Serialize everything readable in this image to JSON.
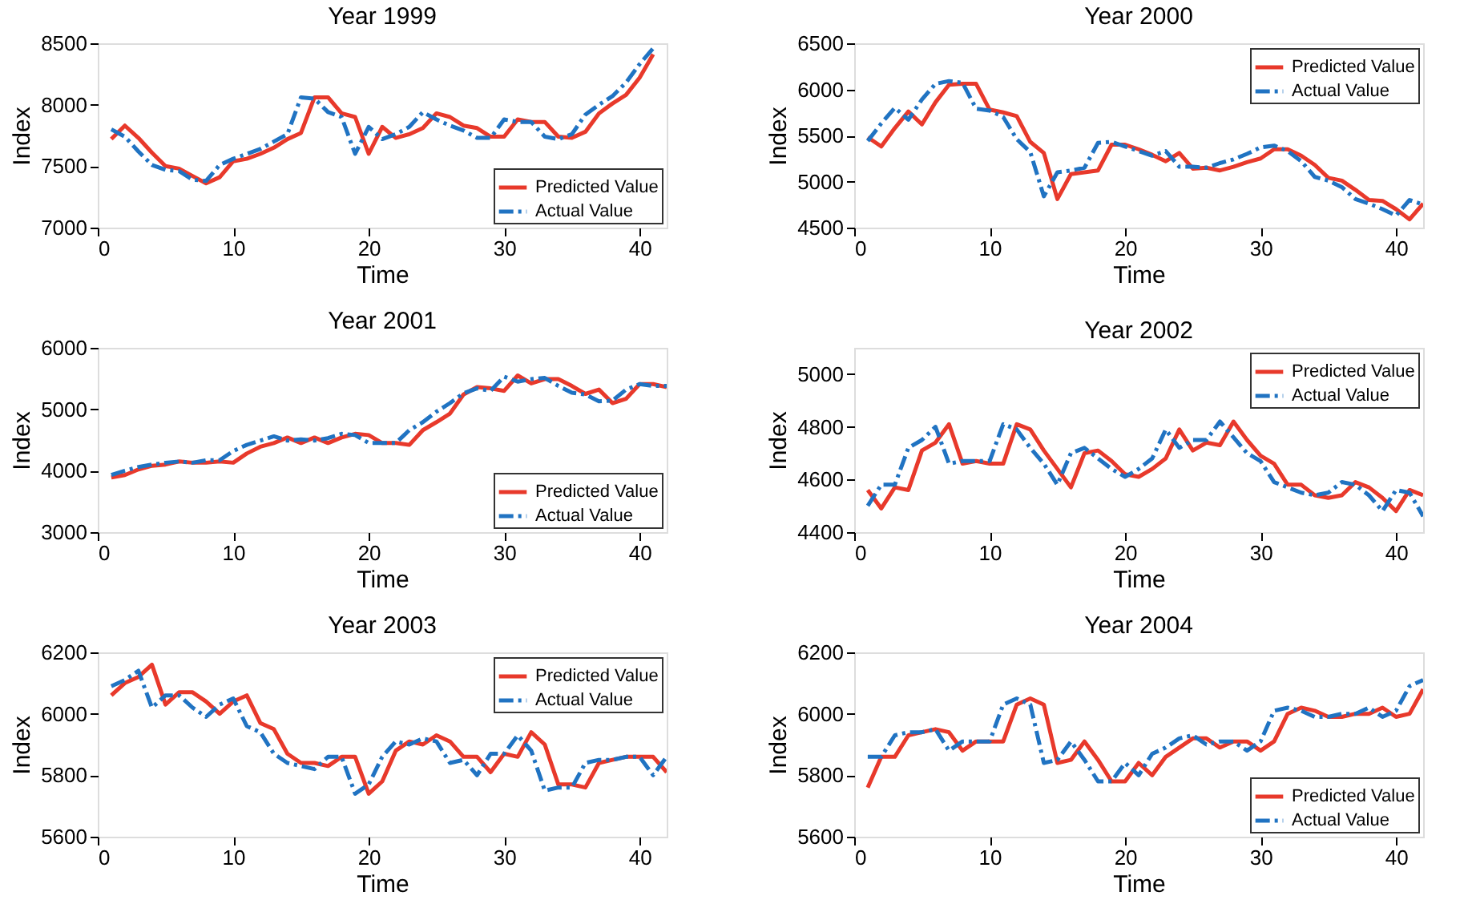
{
  "chart_data": [
    {
      "type": "line",
      "title": "Year 1999",
      "xlabel": "Time",
      "ylabel": "Index",
      "xlim": [
        0,
        42
      ],
      "xticks": [
        0,
        10,
        20,
        30,
        40
      ],
      "ylim": [
        7000,
        8500
      ],
      "yticks": [
        7000,
        7500,
        8000,
        8500
      ],
      "legend": "bottom right",
      "x": [
        1,
        2,
        3,
        4,
        5,
        6,
        7,
        8,
        9,
        10,
        11,
        12,
        13,
        14,
        15,
        16,
        17,
        18,
        19,
        20,
        21,
        22,
        23,
        24,
        25,
        26,
        27,
        28,
        29,
        30,
        31,
        32,
        33,
        34,
        35,
        36,
        37,
        38,
        39,
        40,
        41
      ],
      "series": [
        {
          "name": "Predicted Value",
          "color": "#e8392b",
          "line_style": "solid",
          "values": [
            7720,
            7830,
            7730,
            7610,
            7500,
            7480,
            7420,
            7360,
            7410,
            7540,
            7560,
            7600,
            7650,
            7720,
            7770,
            8060,
            8060,
            7930,
            7900,
            7600,
            7820,
            7730,
            7760,
            7810,
            7930,
            7900,
            7830,
            7810,
            7740,
            7740,
            7880,
            7860,
            7860,
            7740,
            7730,
            7780,
            7930,
            8010,
            8080,
            8220,
            8410
          ]
        },
        {
          "name": "Actual Value",
          "color": "#2073c2",
          "line_style": "dashed",
          "values": [
            7800,
            7740,
            7620,
            7510,
            7470,
            7460,
            7390,
            7380,
            7510,
            7560,
            7600,
            7640,
            7700,
            7760,
            8060,
            8050,
            7940,
            7900,
            7600,
            7820,
            7720,
            7760,
            7820,
            7940,
            7880,
            7830,
            7790,
            7730,
            7730,
            7880,
            7860,
            7860,
            7740,
            7720,
            7760,
            7920,
            8000,
            8070,
            8180,
            8330,
            8460
          ]
        }
      ]
    },
    {
      "type": "line",
      "title": "Year 2000",
      "xlabel": "Time",
      "ylabel": "Index",
      "xlim": [
        0,
        42
      ],
      "xticks": [
        0,
        10,
        20,
        30,
        40
      ],
      "ylim": [
        4500,
        6500
      ],
      "yticks": [
        4500,
        5000,
        5500,
        6000,
        6500
      ],
      "legend": "top right",
      "x": [
        1,
        2,
        3,
        4,
        5,
        6,
        7,
        8,
        9,
        10,
        11,
        12,
        13,
        14,
        15,
        16,
        17,
        18,
        19,
        20,
        21,
        22,
        23,
        24,
        25,
        26,
        27,
        28,
        29,
        30,
        31,
        32,
        33,
        34,
        35,
        36,
        37,
        38,
        39,
        40,
        41,
        42
      ],
      "series": [
        {
          "name": "Predicted Value",
          "color": "#e8392b",
          "line_style": "solid",
          "values": [
            5480,
            5380,
            5580,
            5760,
            5620,
            5860,
            6050,
            6060,
            6060,
            5780,
            5750,
            5710,
            5430,
            5310,
            4810,
            5080,
            5100,
            5120,
            5400,
            5400,
            5350,
            5290,
            5220,
            5310,
            5140,
            5150,
            5120,
            5160,
            5210,
            5250,
            5350,
            5350,
            5280,
            5180,
            5040,
            5010,
            4910,
            4800,
            4790,
            4700,
            4590,
            4760
          ]
        },
        {
          "name": "Actual Value",
          "color": "#2073c2",
          "line_style": "dashed",
          "values": [
            5440,
            5630,
            5800,
            5670,
            5890,
            6060,
            6090,
            6070,
            5790,
            5770,
            5700,
            5460,
            5320,
            4840,
            5100,
            5120,
            5150,
            5420,
            5430,
            5380,
            5330,
            5280,
            5330,
            5160,
            5160,
            5150,
            5200,
            5240,
            5300,
            5370,
            5390,
            5330,
            5220,
            5050,
            5010,
            4940,
            4810,
            4760,
            4700,
            4630,
            4800,
            4750
          ]
        }
      ]
    },
    {
      "type": "line",
      "title": "Year 2001",
      "xlabel": "Time",
      "ylabel": "Index",
      "xlim": [
        0,
        42
      ],
      "xticks": [
        0,
        10,
        20,
        30,
        40
      ],
      "ylim": [
        3000,
        6000
      ],
      "yticks": [
        3000,
        4000,
        5000,
        6000
      ],
      "legend": "bottom right",
      "x": [
        1,
        2,
        3,
        4,
        5,
        6,
        7,
        8,
        9,
        10,
        11,
        12,
        13,
        14,
        15,
        16,
        17,
        18,
        19,
        20,
        21,
        22,
        23,
        24,
        25,
        26,
        27,
        28,
        29,
        30,
        31,
        32,
        33,
        34,
        35,
        36,
        37,
        38,
        39,
        40,
        41,
        42
      ],
      "series": [
        {
          "name": "Predicted Value",
          "color": "#e8392b",
          "line_style": "solid",
          "values": [
            3890,
            3930,
            4020,
            4080,
            4100,
            4150,
            4130,
            4130,
            4150,
            4130,
            4280,
            4390,
            4450,
            4540,
            4450,
            4540,
            4450,
            4540,
            4600,
            4580,
            4450,
            4450,
            4420,
            4660,
            4790,
            4930,
            5240,
            5360,
            5340,
            5300,
            5550,
            5420,
            5490,
            5490,
            5380,
            5250,
            5320,
            5100,
            5170,
            5410,
            5410,
            5360
          ]
        },
        {
          "name": "Actual Value",
          "color": "#2073c2",
          "line_style": "dashed",
          "values": [
            3930,
            4000,
            4060,
            4100,
            4130,
            4150,
            4130,
            4170,
            4170,
            4320,
            4420,
            4490,
            4560,
            4490,
            4510,
            4490,
            4530,
            4600,
            4580,
            4450,
            4450,
            4450,
            4660,
            4790,
            4960,
            5100,
            5260,
            5340,
            5300,
            5530,
            5450,
            5490,
            5510,
            5380,
            5270,
            5240,
            5130,
            5140,
            5320,
            5410,
            5380,
            5380
          ]
        }
      ]
    },
    {
      "type": "line",
      "title": "Year 2002",
      "xlabel": "Time",
      "ylabel": "Index",
      "xlim": [
        0,
        42
      ],
      "xticks": [
        0,
        10,
        20,
        30,
        40
      ],
      "ylim": [
        4400,
        5100
      ],
      "yticks": [
        4400,
        4600,
        4800,
        5000
      ],
      "legend": "top right",
      "x": [
        1,
        2,
        3,
        4,
        5,
        6,
        7,
        8,
        9,
        10,
        11,
        12,
        13,
        14,
        15,
        16,
        17,
        18,
        19,
        20,
        21,
        22,
        23,
        24,
        25,
        26,
        27,
        28,
        29,
        30,
        31,
        32,
        33,
        34,
        35,
        36,
        37,
        38,
        39,
        40,
        41,
        42
      ],
      "series": [
        {
          "name": "Predicted Value",
          "color": "#e8392b",
          "line_style": "solid",
          "values": [
            4560,
            4490,
            4570,
            4560,
            4710,
            4740,
            4810,
            4660,
            4670,
            4660,
            4660,
            4810,
            4790,
            4710,
            4640,
            4570,
            4700,
            4710,
            4670,
            4620,
            4610,
            4640,
            4680,
            4790,
            4710,
            4740,
            4730,
            4820,
            4750,
            4690,
            4660,
            4580,
            4580,
            4540,
            4530,
            4540,
            4590,
            4570,
            4530,
            4480,
            4560,
            4540
          ]
        },
        {
          "name": "Actual Value",
          "color": "#2073c2",
          "line_style": "dashed",
          "values": [
            4500,
            4580,
            4580,
            4720,
            4750,
            4800,
            4660,
            4670,
            4670,
            4670,
            4810,
            4790,
            4720,
            4660,
            4580,
            4700,
            4720,
            4680,
            4640,
            4610,
            4640,
            4680,
            4790,
            4720,
            4750,
            4750,
            4820,
            4760,
            4700,
            4670,
            4590,
            4570,
            4550,
            4540,
            4550,
            4590,
            4580,
            4540,
            4480,
            4560,
            4550,
            4460
          ]
        }
      ]
    },
    {
      "type": "line",
      "title": "Year 2003",
      "xlabel": "Time",
      "ylabel": "Index",
      "xlim": [
        0,
        42
      ],
      "xticks": [
        0,
        10,
        20,
        30,
        40
      ],
      "ylim": [
        5600,
        6200
      ],
      "yticks": [
        5600,
        5800,
        6000,
        6200
      ],
      "legend": "top right",
      "x": [
        1,
        2,
        3,
        4,
        5,
        6,
        7,
        8,
        9,
        10,
        11,
        12,
        13,
        14,
        15,
        16,
        17,
        18,
        19,
        20,
        21,
        22,
        23,
        24,
        25,
        26,
        27,
        28,
        29,
        30,
        31,
        32,
        33,
        34,
        35,
        36,
        37,
        38,
        39,
        40,
        41,
        42
      ],
      "series": [
        {
          "name": "Predicted Value",
          "color": "#e8392b",
          "line_style": "solid",
          "values": [
            6060,
            6100,
            6120,
            6160,
            6030,
            6070,
            6070,
            6040,
            6000,
            6040,
            6060,
            5970,
            5950,
            5870,
            5840,
            5840,
            5830,
            5860,
            5860,
            5740,
            5780,
            5880,
            5910,
            5900,
            5930,
            5910,
            5860,
            5860,
            5810,
            5870,
            5860,
            5940,
            5900,
            5770,
            5770,
            5760,
            5840,
            5850,
            5860,
            5860,
            5860,
            5810
          ]
        },
        {
          "name": "Actual Value",
          "color": "#2073c2",
          "line_style": "dashed",
          "values": [
            6090,
            6110,
            6140,
            6020,
            6060,
            6060,
            6020,
            5990,
            6030,
            6050,
            5960,
            5940,
            5870,
            5840,
            5830,
            5820,
            5860,
            5860,
            5740,
            5770,
            5860,
            5910,
            5900,
            5920,
            5910,
            5840,
            5850,
            5800,
            5870,
            5870,
            5930,
            5880,
            5750,
            5760,
            5760,
            5840,
            5850,
            5850,
            5860,
            5860,
            5800,
            5860
          ]
        }
      ]
    },
    {
      "type": "line",
      "title": "Year 2004",
      "xlabel": "Time",
      "ylabel": "Index",
      "xlim": [
        0,
        42
      ],
      "xticks": [
        0,
        10,
        20,
        30,
        40
      ],
      "ylim": [
        5600,
        6200
      ],
      "yticks": [
        5600,
        5800,
        6000,
        6200
      ],
      "legend": "bottom right",
      "x": [
        1,
        2,
        3,
        4,
        5,
        6,
        7,
        8,
        9,
        10,
        11,
        12,
        13,
        14,
        15,
        16,
        17,
        18,
        19,
        20,
        21,
        22,
        23,
        24,
        25,
        26,
        27,
        28,
        29,
        30,
        31,
        32,
        33,
        34,
        35,
        36,
        37,
        38,
        39,
        40,
        41,
        42
      ],
      "series": [
        {
          "name": "Predicted Value",
          "color": "#e8392b",
          "line_style": "solid",
          "values": [
            5760,
            5860,
            5860,
            5930,
            5940,
            5950,
            5940,
            5880,
            5910,
            5910,
            5910,
            6030,
            6050,
            6030,
            5840,
            5850,
            5910,
            5850,
            5780,
            5780,
            5840,
            5800,
            5860,
            5890,
            5920,
            5920,
            5890,
            5910,
            5910,
            5880,
            5910,
            6000,
            6020,
            6010,
            5990,
            5990,
            6000,
            6000,
            6020,
            5990,
            6000,
            6080
          ]
        },
        {
          "name": "Actual Value",
          "color": "#2073c2",
          "line_style": "dashed",
          "values": [
            5860,
            5860,
            5930,
            5940,
            5940,
            5950,
            5880,
            5910,
            5910,
            5910,
            6030,
            6050,
            6030,
            5840,
            5850,
            5910,
            5850,
            5780,
            5780,
            5840,
            5800,
            5870,
            5890,
            5920,
            5930,
            5900,
            5910,
            5910,
            5880,
            5910,
            6010,
            6020,
            6010,
            5990,
            5990,
            6000,
            6000,
            6020,
            5990,
            6010,
            6090,
            6110
          ]
        }
      ]
    }
  ]
}
